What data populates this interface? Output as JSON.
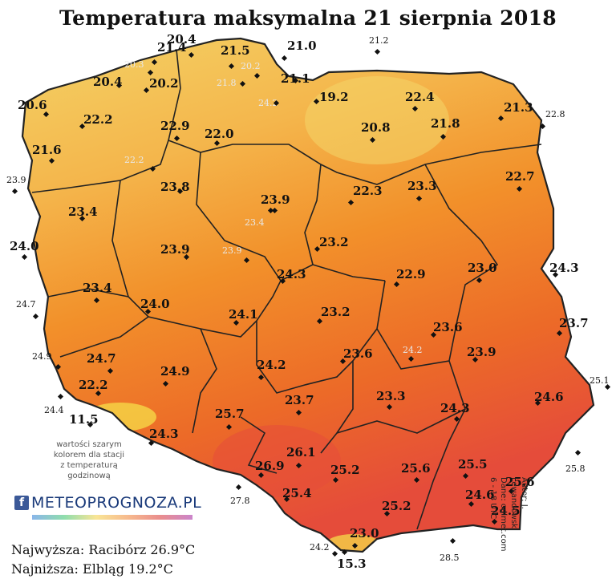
{
  "title": "Temperatura maksymalna 21 sierpnia 2018",
  "colors": {
    "coast_cool": "#f3d265",
    "north": "#f4b64c",
    "central": "#f2902a",
    "south_warm": "#ec6a28",
    "hot": "#e54c3a",
    "mountains": "#f7e64a",
    "border": "#222222"
  },
  "stations": [
    {
      "label": "21.4",
      "kind": "bold"
    },
    {
      "label": "20.4",
      "kind": "bold"
    },
    {
      "label": "21.5",
      "kind": "bold"
    },
    {
      "label": "21.0",
      "kind": "bold"
    },
    {
      "label": "21.2",
      "kind": "out"
    },
    {
      "label": "20.3",
      "kind": "gray"
    },
    {
      "label": "20.2",
      "kind": "gray"
    },
    {
      "label": "21.8",
      "kind": "gray"
    },
    {
      "label": "21.1",
      "kind": "bold"
    },
    {
      "label": "20.4",
      "kind": "bold"
    },
    {
      "label": "20.2",
      "kind": "bold"
    },
    {
      "label": "24.2",
      "kind": "gray"
    },
    {
      "label": "19.2",
      "kind": "bold"
    },
    {
      "label": "22.4",
      "kind": "bold"
    },
    {
      "label": "21.3",
      "kind": "bold"
    },
    {
      "label": "22.8",
      "kind": "out"
    },
    {
      "label": "20.6",
      "kind": "bold"
    },
    {
      "label": "22.2",
      "kind": "bold"
    },
    {
      "label": "22.9",
      "kind": "bold"
    },
    {
      "label": "22.0",
      "kind": "bold"
    },
    {
      "label": "20.8",
      "kind": "bold"
    },
    {
      "label": "21.8",
      "kind": "bold"
    },
    {
      "label": "21.6",
      "kind": "bold"
    },
    {
      "label": "22.2",
      "kind": "gray"
    },
    {
      "label": "22.7",
      "kind": "bold"
    },
    {
      "label": "23.9",
      "kind": "out"
    },
    {
      "label": "23.8",
      "kind": "bold"
    },
    {
      "label": "23.9",
      "kind": "bold"
    },
    {
      "label": "22.3",
      "kind": "bold"
    },
    {
      "label": "23.3",
      "kind": "bold"
    },
    {
      "label": "23.4",
      "kind": "bold"
    },
    {
      "label": "23.4",
      "kind": "gray"
    },
    {
      "label": "24.0",
      "kind": "bold"
    },
    {
      "label": "23.9",
      "kind": "bold"
    },
    {
      "label": "23.9",
      "kind": "gray"
    },
    {
      "label": "23.2",
      "kind": "bold"
    },
    {
      "label": "24.3",
      "kind": "bold"
    },
    {
      "label": "22.9",
      "kind": "bold"
    },
    {
      "label": "23.0",
      "kind": "bold"
    },
    {
      "label": "24.3",
      "kind": "bold"
    },
    {
      "label": "23.4",
      "kind": "bold"
    },
    {
      "label": "24.7",
      "kind": "out"
    },
    {
      "label": "24.0",
      "kind": "bold"
    },
    {
      "label": "24.1",
      "kind": "bold"
    },
    {
      "label": "23.2",
      "kind": "bold"
    },
    {
      "label": "23.7",
      "kind": "bold"
    },
    {
      "label": "23.6",
      "kind": "bold"
    },
    {
      "label": "24.9",
      "kind": "out"
    },
    {
      "label": "24.7",
      "kind": "bold"
    },
    {
      "label": "24.9",
      "kind": "bold"
    },
    {
      "label": "24.2",
      "kind": "bold"
    },
    {
      "label": "23.6",
      "kind": "bold"
    },
    {
      "label": "24.2",
      "kind": "gray"
    },
    {
      "label": "23.9",
      "kind": "bold"
    },
    {
      "label": "25.1",
      "kind": "out"
    },
    {
      "label": "22.2",
      "kind": "bold"
    },
    {
      "label": "24.6",
      "kind": "bold"
    },
    {
      "label": "24.4",
      "kind": "out"
    },
    {
      "label": "11.5",
      "kind": "bold"
    },
    {
      "label": "23.7",
      "kind": "bold"
    },
    {
      "label": "23.3",
      "kind": "bold"
    },
    {
      "label": "25.7",
      "kind": "bold"
    },
    {
      "label": "24.3",
      "kind": "bold"
    },
    {
      "label": "24.3",
      "kind": "bold"
    },
    {
      "label": "26.1",
      "kind": "bold"
    },
    {
      "label": "26.9",
      "kind": "bold"
    },
    {
      "label": "25.2",
      "kind": "bold"
    },
    {
      "label": "25.6",
      "kind": "bold"
    },
    {
      "label": "25.5",
      "kind": "bold"
    },
    {
      "label": "25.8",
      "kind": "out"
    },
    {
      "label": "25.4",
      "kind": "bold"
    },
    {
      "label": "24.6",
      "kind": "bold"
    },
    {
      "label": "25.6",
      "kind": "bold"
    },
    {
      "label": "27.8",
      "kind": "out"
    },
    {
      "label": "25.2",
      "kind": "bold"
    },
    {
      "label": "24.5",
      "kind": "bold"
    },
    {
      "label": "23.0",
      "kind": "bold"
    },
    {
      "label": "24.2",
      "kind": "out"
    },
    {
      "label": "28.5",
      "kind": "out"
    },
    {
      "label": "15.3",
      "kind": "bold"
    }
  ],
  "legend_note": [
    "wartości szarym",
    "kolorem dla stacji",
    "z temperaturą",
    "godzinową"
  ],
  "logo": {
    "icon": "f",
    "text": "METEOPROGNOZA.PL"
  },
  "stats": {
    "max_text": "Najwyższa: Racibórz 26.9°C",
    "min_text": "Najniższa: Elbląg 19.2°C"
  },
  "credits": [
    "Autor: J. Lewandowski",
    "Dane: ogimet.com",
    "6 - 18 UTC"
  ]
}
